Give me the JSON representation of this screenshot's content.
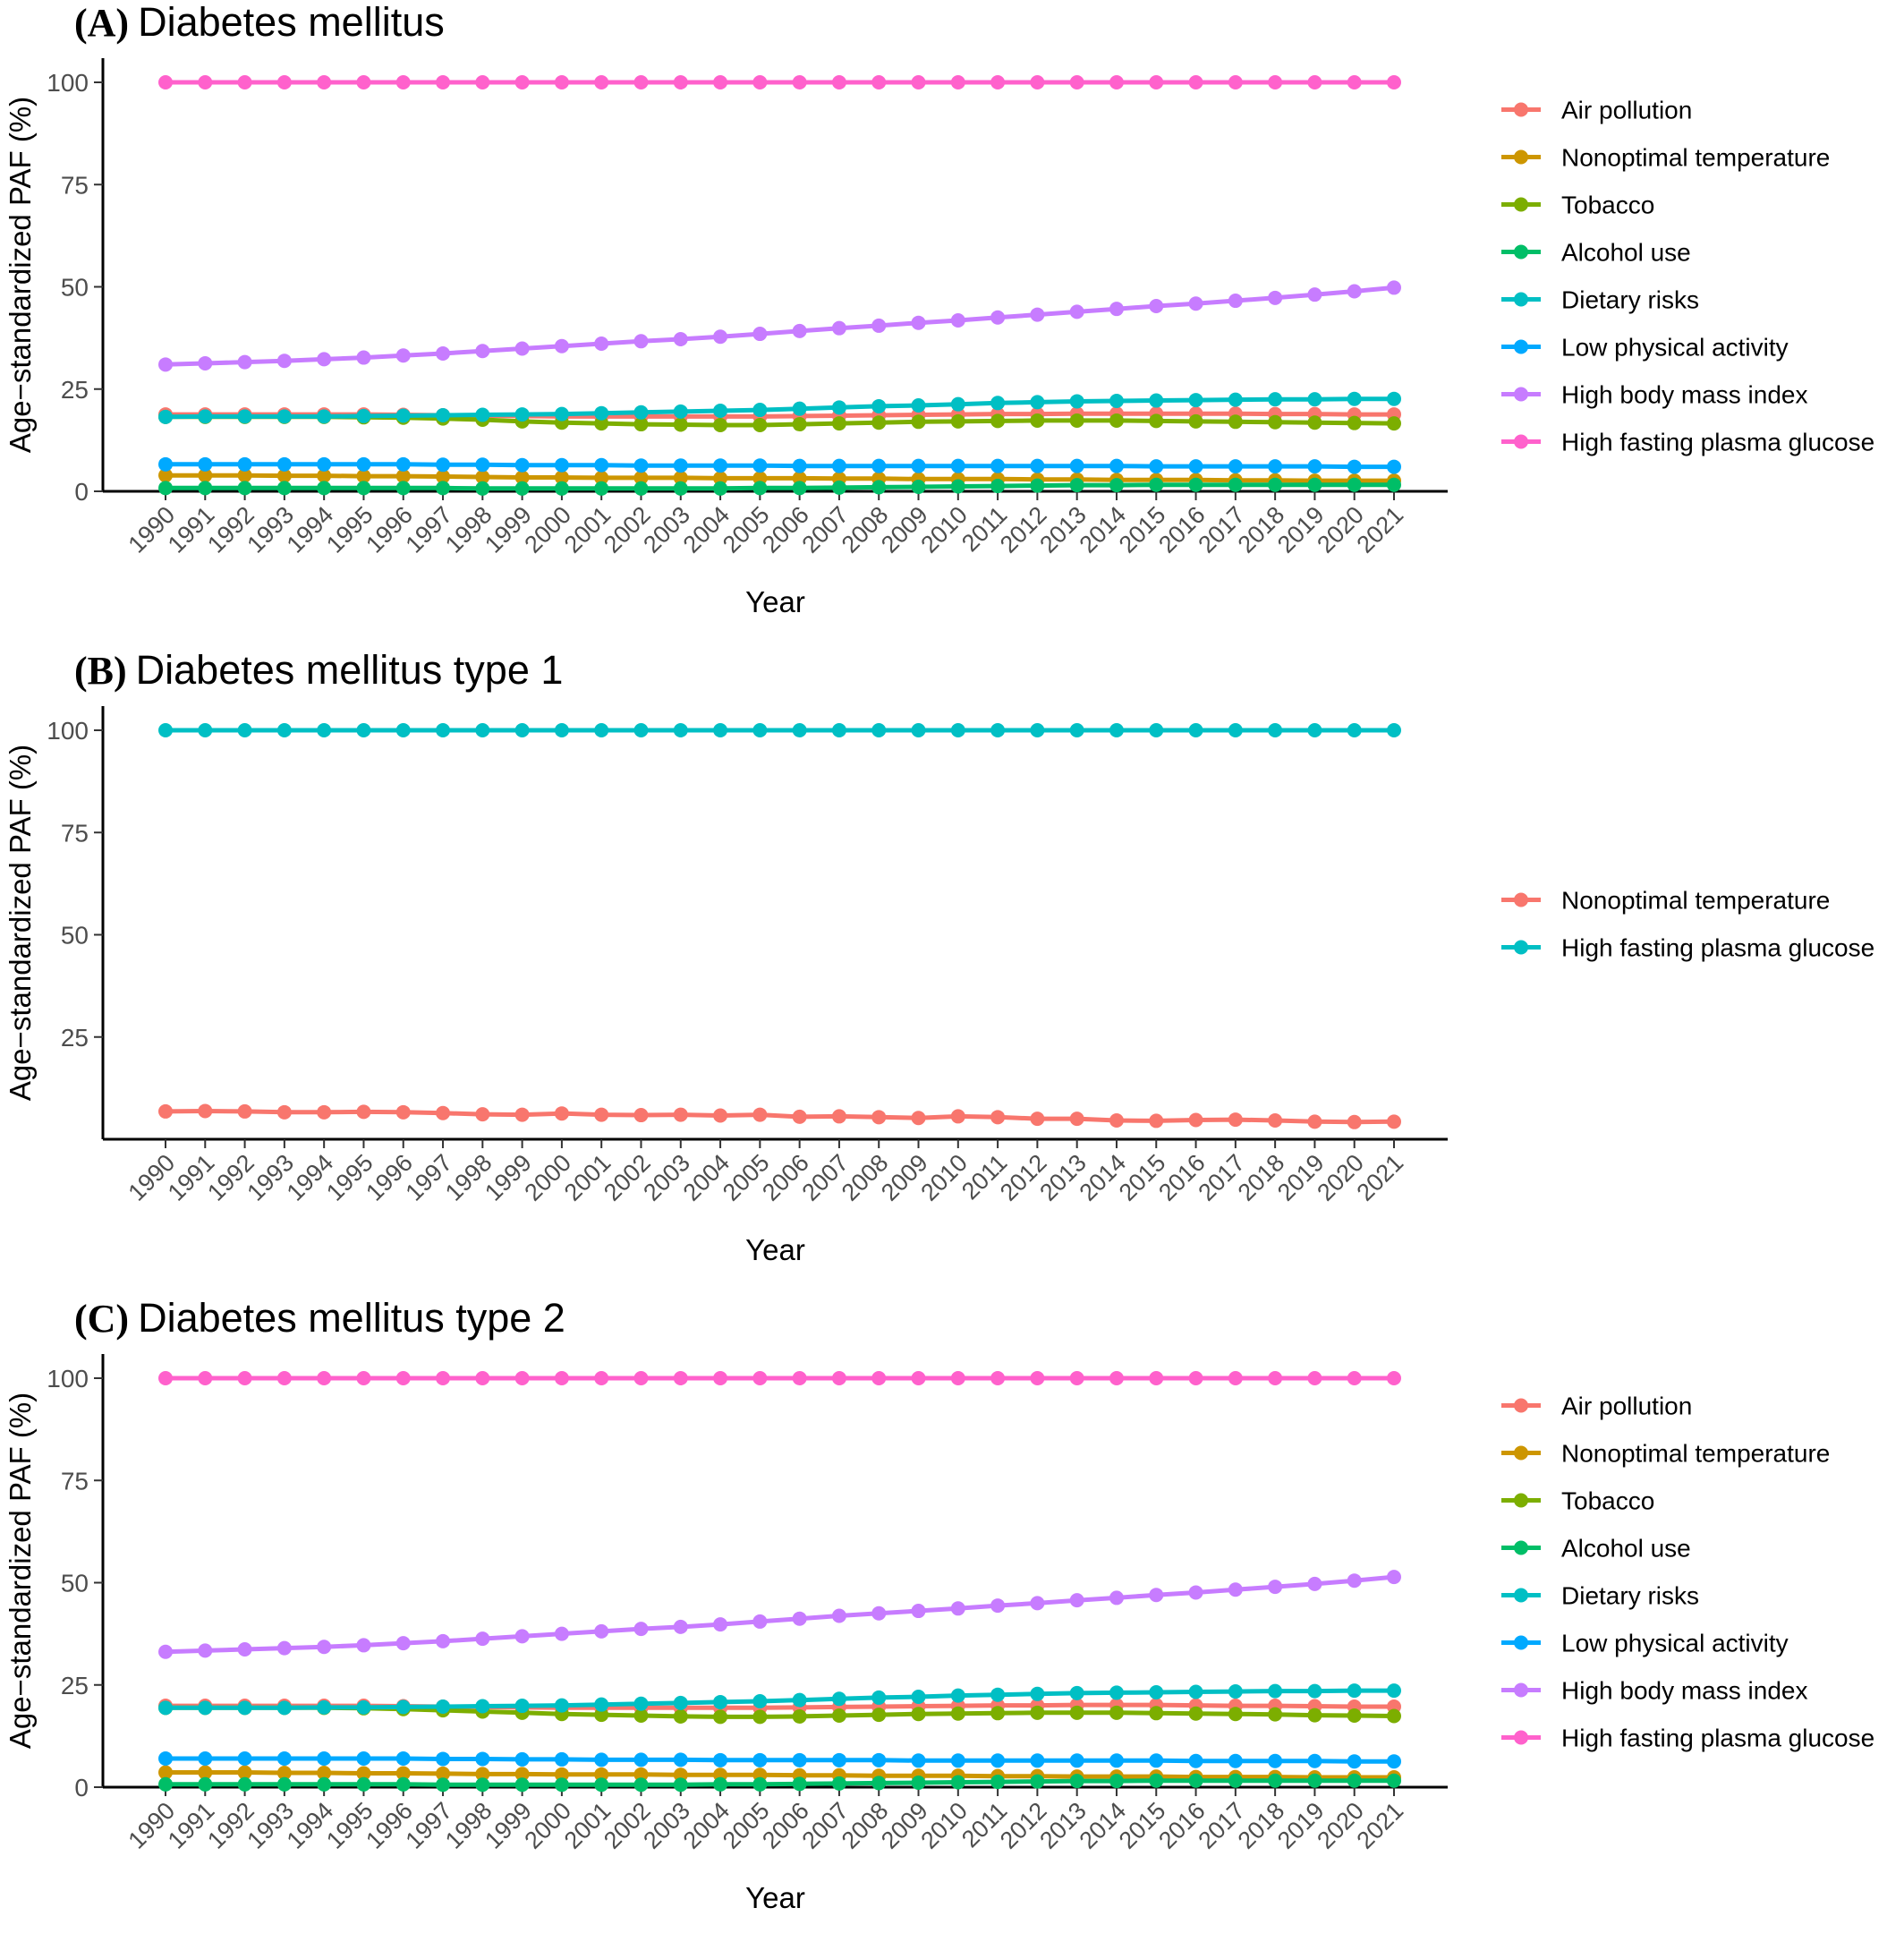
{
  "chart_data": [
    {
      "type": "line",
      "panel_label": "(A)",
      "title": "Diabetes mellitus",
      "xlabel": "Year",
      "ylabel": "Age−standardized PAF (%)",
      "ylim": [
        0,
        100
      ],
      "yticks": [
        0,
        25,
        50,
        75,
        100
      ],
      "x": [
        1990,
        1991,
        1992,
        1993,
        1994,
        1995,
        1996,
        1997,
        1998,
        1999,
        2000,
        2001,
        2002,
        2003,
        2004,
        2005,
        2006,
        2007,
        2008,
        2009,
        2010,
        2011,
        2012,
        2013,
        2014,
        2015,
        2016,
        2017,
        2018,
        2019,
        2020,
        2021
      ],
      "legend_position": "right",
      "series": [
        {
          "name": "Air pollution",
          "color": "#F8766D",
          "values": [
            18.8,
            18.8,
            18.8,
            18.8,
            18.8,
            18.8,
            18.7,
            18.6,
            18.5,
            18.4,
            18.3,
            18.3,
            18.3,
            18.3,
            18.3,
            18.3,
            18.4,
            18.5,
            18.6,
            18.7,
            18.8,
            18.9,
            18.9,
            19.0,
            19.0,
            19.0,
            19.0,
            19.0,
            18.9,
            18.9,
            18.8,
            18.8
          ]
        },
        {
          "name": "Nonoptimal temperature",
          "color": "#CD9600",
          "values": [
            3.9,
            3.9,
            3.9,
            3.8,
            3.8,
            3.7,
            3.7,
            3.6,
            3.5,
            3.4,
            3.4,
            3.3,
            3.3,
            3.3,
            3.2,
            3.2,
            3.2,
            3.1,
            3.1,
            3.0,
            3.0,
            3.0,
            2.9,
            2.9,
            2.8,
            2.8,
            2.8,
            2.7,
            2.7,
            2.6,
            2.6,
            2.6
          ]
        },
        {
          "name": "Tobacco",
          "color": "#7CAE00",
          "values": [
            18.2,
            18.2,
            18.2,
            18.2,
            18.2,
            18.1,
            18.0,
            17.8,
            17.5,
            17.1,
            16.8,
            16.6,
            16.4,
            16.3,
            16.2,
            16.2,
            16.4,
            16.6,
            16.8,
            17.0,
            17.1,
            17.2,
            17.3,
            17.3,
            17.3,
            17.2,
            17.1,
            17.0,
            16.9,
            16.8,
            16.7,
            16.6
          ]
        },
        {
          "name": "Alcohol use",
          "color": "#00BE67",
          "values": [
            0.8,
            0.8,
            0.8,
            0.8,
            0.8,
            0.8,
            0.8,
            0.8,
            0.7,
            0.7,
            0.7,
            0.7,
            0.7,
            0.7,
            0.7,
            0.8,
            0.8,
            0.9,
            1.0,
            1.1,
            1.2,
            1.3,
            1.4,
            1.5,
            1.5,
            1.6,
            1.6,
            1.6,
            1.6,
            1.6,
            1.6,
            1.6
          ]
        },
        {
          "name": "Dietary risks",
          "color": "#00BFC4",
          "values": [
            18.2,
            18.3,
            18.3,
            18.3,
            18.3,
            18.4,
            18.5,
            18.6,
            18.7,
            18.8,
            18.9,
            19.1,
            19.3,
            19.5,
            19.7,
            19.9,
            20.2,
            20.5,
            20.8,
            21.0,
            21.3,
            21.6,
            21.8,
            22.0,
            22.1,
            22.2,
            22.3,
            22.4,
            22.5,
            22.5,
            22.6,
            22.6
          ]
        },
        {
          "name": "Low physical activity",
          "color": "#00A9FF",
          "values": [
            6.6,
            6.6,
            6.6,
            6.6,
            6.6,
            6.6,
            6.6,
            6.5,
            6.5,
            6.4,
            6.4,
            6.4,
            6.3,
            6.3,
            6.3,
            6.3,
            6.2,
            6.2,
            6.2,
            6.2,
            6.2,
            6.2,
            6.2,
            6.2,
            6.2,
            6.1,
            6.1,
            6.1,
            6.1,
            6.1,
            6.0,
            6.0
          ]
        },
        {
          "name": "High body mass index",
          "color": "#C77CFF",
          "values": [
            31.0,
            31.3,
            31.6,
            31.9,
            32.3,
            32.7,
            33.2,
            33.7,
            34.3,
            34.9,
            35.5,
            36.1,
            36.7,
            37.2,
            37.8,
            38.5,
            39.2,
            39.9,
            40.5,
            41.2,
            41.8,
            42.5,
            43.2,
            43.9,
            44.6,
            45.3,
            45.9,
            46.6,
            47.3,
            48.1,
            48.9,
            49.8
          ]
        },
        {
          "name": "High fasting plasma glucose",
          "color": "#FF61CC",
          "values": [
            100,
            100,
            100,
            100,
            100,
            100,
            100,
            100,
            100,
            100,
            100,
            100,
            100,
            100,
            100,
            100,
            100,
            100,
            100,
            100,
            100,
            100,
            100,
            100,
            100,
            100,
            100,
            100,
            100,
            100,
            100,
            100
          ]
        }
      ]
    },
    {
      "type": "line",
      "panel_label": "(B)",
      "title": "Diabetes mellitus type 1",
      "xlabel": "Year",
      "ylabel": "Age−standardized PAF (%)",
      "ylim": [
        0,
        100
      ],
      "yticks": [
        25,
        50,
        75,
        100
      ],
      "x": [
        1990,
        1991,
        1992,
        1993,
        1994,
        1995,
        1996,
        1997,
        1998,
        1999,
        2000,
        2001,
        2002,
        2003,
        2004,
        2005,
        2006,
        2007,
        2008,
        2009,
        2010,
        2011,
        2012,
        2013,
        2014,
        2015,
        2016,
        2017,
        2018,
        2019,
        2020,
        2021
      ],
      "legend_position": "right",
      "series": [
        {
          "name": "Nonoptimal temperature",
          "color": "#F8766D",
          "values": [
            6.8,
            6.9,
            6.8,
            6.6,
            6.6,
            6.7,
            6.6,
            6.4,
            6.1,
            6.0,
            6.3,
            6.0,
            5.9,
            6.0,
            5.8,
            6.0,
            5.5,
            5.6,
            5.4,
            5.2,
            5.6,
            5.4,
            5.0,
            5.0,
            4.6,
            4.5,
            4.7,
            4.8,
            4.6,
            4.3,
            4.2,
            4.3
          ]
        },
        {
          "name": "High fasting plasma glucose",
          "color": "#00BFC4",
          "values": [
            100,
            100,
            100,
            100,
            100,
            100,
            100,
            100,
            100,
            100,
            100,
            100,
            100,
            100,
            100,
            100,
            100,
            100,
            100,
            100,
            100,
            100,
            100,
            100,
            100,
            100,
            100,
            100,
            100,
            100,
            100,
            100
          ]
        }
      ]
    },
    {
      "type": "line",
      "panel_label": "(C)",
      "title": "Diabetes mellitus type 2",
      "xlabel": "Year",
      "ylabel": "Age−standardized PAF (%)",
      "ylim": [
        0,
        100
      ],
      "yticks": [
        0,
        25,
        50,
        75,
        100
      ],
      "x": [
        1990,
        1991,
        1992,
        1993,
        1994,
        1995,
        1996,
        1997,
        1998,
        1999,
        2000,
        2001,
        2002,
        2003,
        2004,
        2005,
        2006,
        2007,
        2008,
        2009,
        2010,
        2011,
        2012,
        2013,
        2014,
        2015,
        2016,
        2017,
        2018,
        2019,
        2020,
        2021
      ],
      "legend_position": "right",
      "series": [
        {
          "name": "Air pollution",
          "color": "#F8766D",
          "values": [
            19.9,
            19.9,
            19.9,
            19.9,
            19.9,
            19.9,
            19.8,
            19.7,
            19.6,
            19.5,
            19.4,
            19.4,
            19.4,
            19.4,
            19.4,
            19.4,
            19.5,
            19.6,
            19.7,
            19.8,
            19.9,
            20.0,
            20.0,
            20.1,
            20.1,
            20.1,
            20.0,
            19.9,
            19.9,
            19.8,
            19.7,
            19.7
          ]
        },
        {
          "name": "Nonoptimal temperature",
          "color": "#CD9600",
          "values": [
            3.6,
            3.6,
            3.6,
            3.5,
            3.5,
            3.4,
            3.4,
            3.3,
            3.2,
            3.2,
            3.1,
            3.1,
            3.1,
            3.0,
            3.0,
            3.0,
            2.9,
            2.9,
            2.8,
            2.8,
            2.8,
            2.7,
            2.7,
            2.6,
            2.6,
            2.6,
            2.5,
            2.5,
            2.5,
            2.4,
            2.4,
            2.4
          ]
        },
        {
          "name": "Tobacco",
          "color": "#7CAE00",
          "values": [
            19.4,
            19.4,
            19.4,
            19.4,
            19.4,
            19.3,
            19.1,
            18.8,
            18.5,
            18.2,
            17.9,
            17.7,
            17.5,
            17.3,
            17.2,
            17.2,
            17.3,
            17.5,
            17.7,
            17.9,
            18.0,
            18.1,
            18.2,
            18.2,
            18.2,
            18.1,
            18.0,
            17.9,
            17.8,
            17.6,
            17.5,
            17.4
          ]
        },
        {
          "name": "Alcohol use",
          "color": "#00BE67",
          "values": [
            0.7,
            0.7,
            0.7,
            0.7,
            0.7,
            0.7,
            0.7,
            0.6,
            0.6,
            0.6,
            0.6,
            0.6,
            0.6,
            0.6,
            0.7,
            0.7,
            0.8,
            0.9,
            1.0,
            1.1,
            1.2,
            1.3,
            1.4,
            1.5,
            1.5,
            1.6,
            1.6,
            1.6,
            1.6,
            1.6,
            1.6,
            1.6
          ]
        },
        {
          "name": "Dietary risks",
          "color": "#00BFC4",
          "values": [
            19.4,
            19.4,
            19.4,
            19.4,
            19.5,
            19.5,
            19.6,
            19.7,
            19.8,
            19.9,
            20.0,
            20.2,
            20.4,
            20.6,
            20.8,
            21.0,
            21.3,
            21.6,
            21.9,
            22.1,
            22.4,
            22.6,
            22.8,
            23.0,
            23.1,
            23.2,
            23.3,
            23.4,
            23.5,
            23.5,
            23.6,
            23.6
          ]
        },
        {
          "name": "Low physical activity",
          "color": "#00A9FF",
          "values": [
            7.0,
            7.0,
            7.0,
            7.0,
            7.0,
            7.0,
            7.0,
            6.9,
            6.9,
            6.8,
            6.8,
            6.7,
            6.7,
            6.7,
            6.6,
            6.6,
            6.6,
            6.6,
            6.6,
            6.5,
            6.5,
            6.5,
            6.5,
            6.5,
            6.5,
            6.5,
            6.4,
            6.4,
            6.4,
            6.4,
            6.3,
            6.3
          ]
        },
        {
          "name": "High body mass index",
          "color": "#C77CFF",
          "values": [
            33.1,
            33.4,
            33.7,
            34.0,
            34.3,
            34.7,
            35.2,
            35.7,
            36.3,
            36.9,
            37.5,
            38.1,
            38.7,
            39.2,
            39.8,
            40.5,
            41.2,
            41.9,
            42.5,
            43.1,
            43.7,
            44.4,
            45.0,
            45.7,
            46.3,
            47.0,
            47.6,
            48.3,
            49.0,
            49.7,
            50.5,
            51.4
          ]
        },
        {
          "name": "High fasting plasma glucose",
          "color": "#FF61CC",
          "values": [
            100,
            100,
            100,
            100,
            100,
            100,
            100,
            100,
            100,
            100,
            100,
            100,
            100,
            100,
            100,
            100,
            100,
            100,
            100,
            100,
            100,
            100,
            100,
            100,
            100,
            100,
            100,
            100,
            100,
            100,
            100,
            100
          ]
        }
      ]
    }
  ]
}
